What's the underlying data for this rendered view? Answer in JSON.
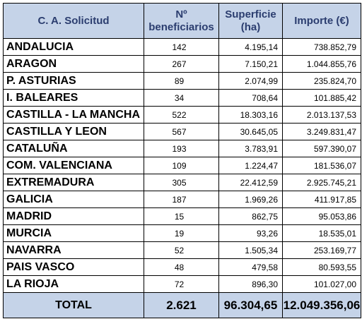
{
  "header": {
    "col1": "C. A. Solicitud",
    "col2_line1": "Nº",
    "col2_line2": "beneficiarios",
    "col3_line1": "Superficie",
    "col3_line2": "(ha)",
    "col4": "Importe (€)"
  },
  "rows": [
    {
      "region": "ANDALUCIA",
      "beneficiarios": "142",
      "superficie": "4.195,14",
      "importe": "738.852,79"
    },
    {
      "region": "ARAGON",
      "beneficiarios": "267",
      "superficie": "7.150,21",
      "importe": "1.044.855,76"
    },
    {
      "region": "P. ASTURIAS",
      "beneficiarios": "89",
      "superficie": "2.074,99",
      "importe": "235.824,70"
    },
    {
      "region": "I. BALEARES",
      "beneficiarios": "34",
      "superficie": "708,64",
      "importe": "101.885,42"
    },
    {
      "region": "CASTILLA - LA MANCHA",
      "beneficiarios": "522",
      "superficie": "18.303,16",
      "importe": "2.013.137,53"
    },
    {
      "region": "CASTILLA Y LEON",
      "beneficiarios": "567",
      "superficie": "30.645,05",
      "importe": "3.249.831,47"
    },
    {
      "region": "CATALUÑA",
      "beneficiarios": "193",
      "superficie": "3.783,91",
      "importe": "597.390,07"
    },
    {
      "region": "COM. VALENCIANA",
      "beneficiarios": "109",
      "superficie": "1.224,47",
      "importe": "181.536,07"
    },
    {
      "region": "EXTREMADURA",
      "beneficiarios": "305",
      "superficie": "22.412,59",
      "importe": "2.925.745,21"
    },
    {
      "region": "GALICIA",
      "beneficiarios": "187",
      "superficie": "1.969,26",
      "importe": "411.917,85"
    },
    {
      "region": "MADRID",
      "beneficiarios": "15",
      "superficie": "862,75",
      "importe": "95.053,86"
    },
    {
      "region": "MURCIA",
      "beneficiarios": "19",
      "superficie": "93,26",
      "importe": "18.535,01"
    },
    {
      "region": "NAVARRA",
      "beneficiarios": "52",
      "superficie": "1.505,34",
      "importe": "253.169,77"
    },
    {
      "region": "PAIS VASCO",
      "beneficiarios": "48",
      "superficie": "479,58",
      "importe": "80.593,55"
    },
    {
      "region": "LA RIOJA",
      "beneficiarios": "72",
      "superficie": "896,30",
      "importe": "101.027,00"
    }
  ],
  "total": {
    "label": "TOTAL",
    "beneficiarios": "2.621",
    "superficie": "96.304,65",
    "importe": "12.049.356,06"
  },
  "colors": {
    "header_bg": "#c5d3e8",
    "header_text": "#2b3d6f"
  }
}
